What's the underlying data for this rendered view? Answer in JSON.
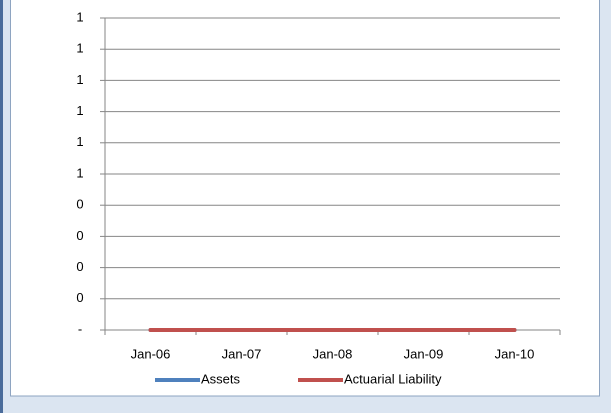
{
  "chart_data": {
    "type": "line",
    "categories": [
      "Jan-06",
      "Jan-07",
      "Jan-08",
      "Jan-09",
      "Jan-10"
    ],
    "series": [
      {
        "name": "Assets",
        "color": "#4f81bd",
        "values": [
          0,
          0,
          0,
          0,
          0
        ]
      },
      {
        "name": "Actuarial Liability",
        "color": "#c0504d",
        "values": [
          0,
          0,
          0,
          0,
          0
        ]
      }
    ],
    "ylim": [
      0,
      1
    ],
    "yticks": [
      {
        "value": 0,
        "label": "-"
      },
      {
        "value": 0.1,
        "label": "0"
      },
      {
        "value": 0.2,
        "label": "0"
      },
      {
        "value": 0.3,
        "label": "0"
      },
      {
        "value": 0.4,
        "label": "0"
      },
      {
        "value": 0.5,
        "label": "1"
      },
      {
        "value": 0.6,
        "label": "1"
      },
      {
        "value": 0.7,
        "label": "1"
      },
      {
        "value": 0.8,
        "label": "1"
      },
      {
        "value": 0.9,
        "label": "1"
      },
      {
        "value": 1,
        "label": "1"
      }
    ],
    "grid": true,
    "legend": "bottom"
  }
}
